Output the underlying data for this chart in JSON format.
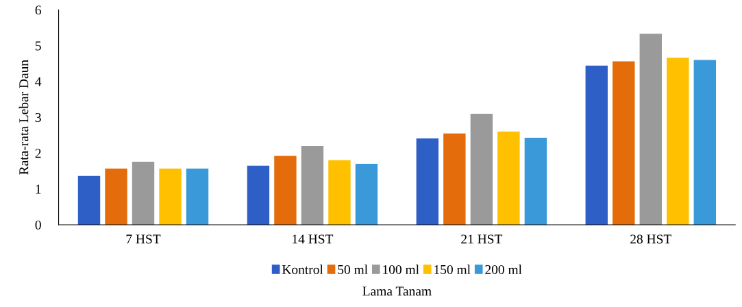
{
  "chart_data": {
    "type": "bar",
    "xlabel": "Lama Tanam",
    "ylabel": "Rata-rata Lebar Daun",
    "categories": [
      "7 HST",
      "14 HST",
      "21 HST",
      "28 HST"
    ],
    "series": [
      {
        "name": "Kontrol",
        "color": "#2e5fc7",
        "values": [
          1.36,
          1.65,
          2.41,
          4.44
        ]
      },
      {
        "name": "50 ml",
        "color": "#e46c0a",
        "values": [
          1.57,
          1.92,
          2.55,
          4.56
        ]
      },
      {
        "name": "100 ml",
        "color": "#9a9a9a",
        "values": [
          1.76,
          2.2,
          3.1,
          5.33
        ]
      },
      {
        "name": "150 ml",
        "color": "#ffc000",
        "values": [
          1.57,
          1.8,
          2.6,
          4.66
        ]
      },
      {
        "name": "200 ml",
        "color": "#3a9ad9",
        "values": [
          1.57,
          1.7,
          2.43,
          4.6
        ]
      }
    ],
    "ylim": [
      0,
      6
    ],
    "yticks": [
      0,
      1,
      2,
      3,
      4,
      5,
      6
    ],
    "grid": false,
    "legend": "bottom"
  }
}
